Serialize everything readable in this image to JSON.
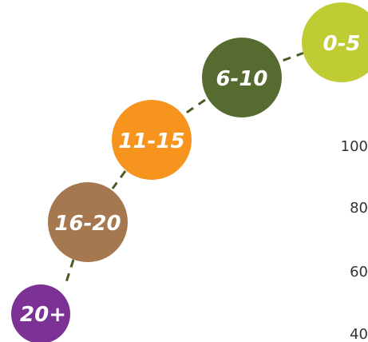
{
  "bubbles": [
    {
      "label": "0-5",
      "color": "#bfcc34"
    },
    {
      "label": "6-10",
      "color": "#556b2f"
    },
    {
      "label": "11-15",
      "color": "#f7941d"
    },
    {
      "label": "16-20",
      "color": "#a57850"
    },
    {
      "label": "20+",
      "color": "#7b3294"
    }
  ],
  "connector_color": "#4a5d23",
  "side_labels": [
    "100",
    "80",
    "60",
    "40"
  ]
}
